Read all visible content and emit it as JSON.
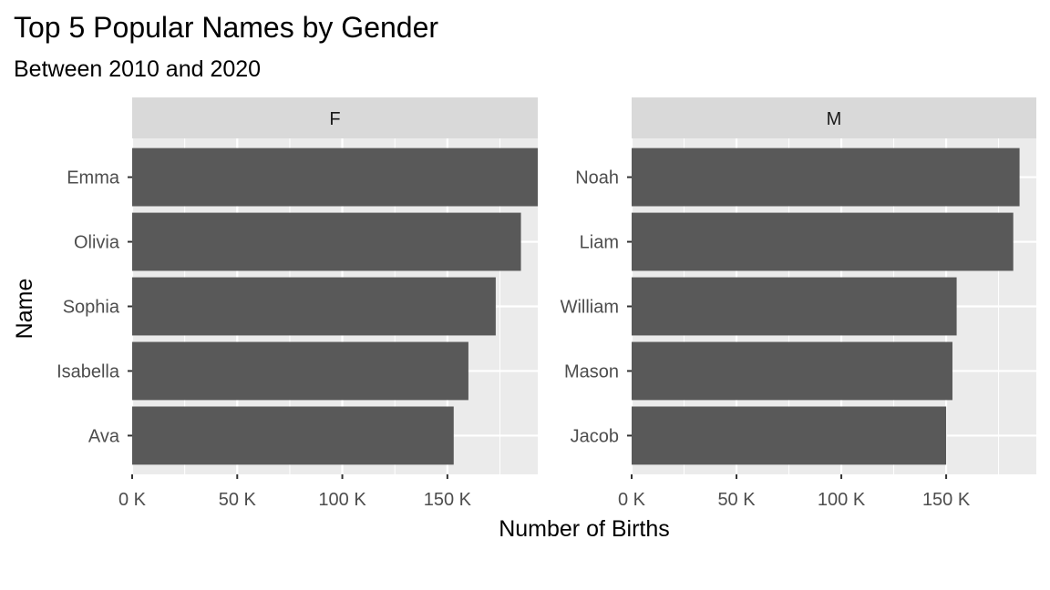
{
  "chart_data": {
    "type": "bar",
    "orientation": "horizontal",
    "title": "Top 5 Popular Names by Gender",
    "subtitle": "Between 2010 and 2020",
    "xlabel": "Number of Births",
    "ylabel": "Name",
    "xlim": [
      0,
      193000
    ],
    "x_ticks": [
      0,
      50000,
      100000,
      150000
    ],
    "x_tick_labels": [
      "0 K",
      "50 K",
      "100 K",
      "150 K"
    ],
    "grid": true,
    "facets": [
      {
        "label": "F",
        "categories": [
          "Emma",
          "Olivia",
          "Sophia",
          "Isabella",
          "Ava"
        ],
        "values": [
          193000,
          185000,
          173000,
          160000,
          153000
        ]
      },
      {
        "label": "M",
        "categories": [
          "Noah",
          "Liam",
          "William",
          "Mason",
          "Jacob"
        ],
        "values": [
          185000,
          182000,
          155000,
          153000,
          150000
        ]
      }
    ],
    "colors": {
      "bar": "#595959",
      "panel_background": "#ebebeb",
      "strip_background": "#d9d9d9",
      "grid_major": "#ffffff",
      "tick_text": "#4d4d4d"
    }
  }
}
